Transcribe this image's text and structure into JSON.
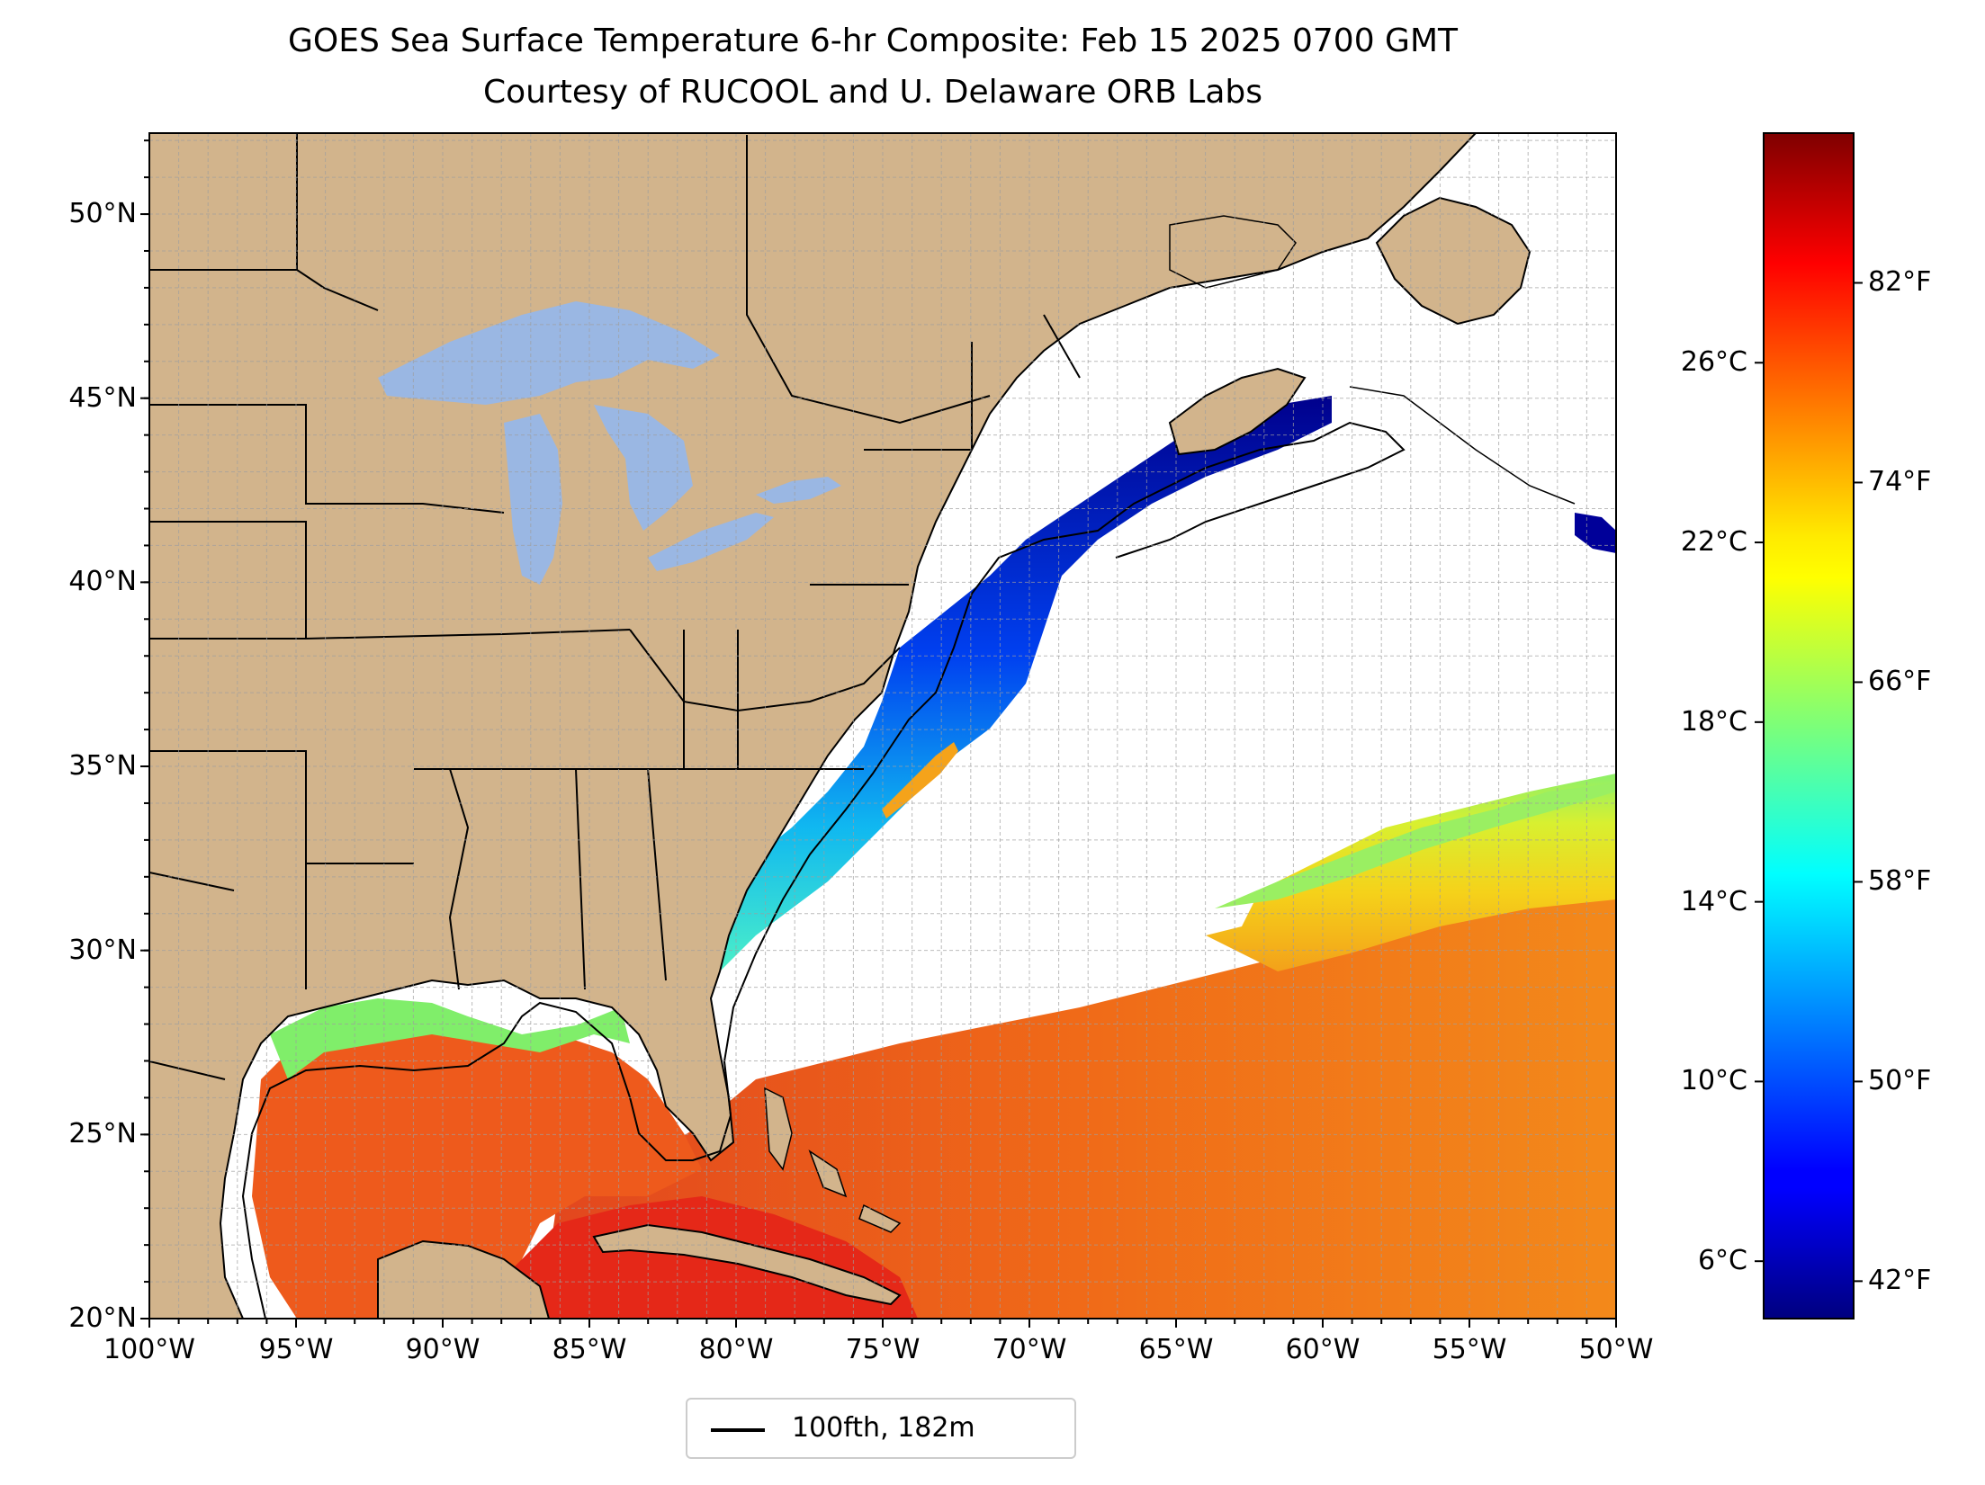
{
  "title": {
    "line1": "GOES Sea Surface Temperature 6-hr Composite: Feb 15 2025 0700 GMT",
    "line2": "Courtesy of RUCOOL and U. Delaware ORB Labs"
  },
  "map": {
    "extent": {
      "lon_min": -100,
      "lon_max": -50,
      "lat_min": 20,
      "lat_max": 52.2
    },
    "lat_ticks": [
      {
        "value": 20,
        "label": "20°N"
      },
      {
        "value": 25,
        "label": "25°N"
      },
      {
        "value": 30,
        "label": "30°N"
      },
      {
        "value": 35,
        "label": "35°N"
      },
      {
        "value": 40,
        "label": "40°N"
      },
      {
        "value": 45,
        "label": "45°N"
      },
      {
        "value": 50,
        "label": "50°N"
      }
    ],
    "lon_ticks": [
      {
        "value": -100,
        "label": "100°W"
      },
      {
        "value": -95,
        "label": "95°W"
      },
      {
        "value": -90,
        "label": "90°W"
      },
      {
        "value": -85,
        "label": "85°W"
      },
      {
        "value": -80,
        "label": "80°W"
      },
      {
        "value": -75,
        "label": "75°W"
      },
      {
        "value": -70,
        "label": "70°W"
      },
      {
        "value": -65,
        "label": "65°W"
      },
      {
        "value": -60,
        "label": "60°W"
      },
      {
        "value": -55,
        "label": "55°W"
      },
      {
        "value": -50,
        "label": "50°W"
      }
    ],
    "grid": true,
    "grid_spacing_deg": 1,
    "colors": {
      "land": "#d2b48c",
      "lakes": "#9ab7e3",
      "ocean_no_data": "#ffffff",
      "borders": "#000000",
      "gridlines": "#9e9e9e"
    },
    "legend": {
      "label": "100fth, 182m",
      "placement": "below-center",
      "line_color": "#000000"
    }
  },
  "colorbar": {
    "colormap": "jet",
    "vmin_f": 40.5,
    "vmax_f": 88,
    "celsius_ticks": [
      {
        "value": 6,
        "label": "6°C"
      },
      {
        "value": 10,
        "label": "10°C"
      },
      {
        "value": 14,
        "label": "14°C"
      },
      {
        "value": 18,
        "label": "18°C"
      },
      {
        "value": 22,
        "label": "22°C"
      },
      {
        "value": 26,
        "label": "26°C"
      }
    ],
    "fahrenheit_ticks": [
      {
        "value": 42,
        "label": "42°F"
      },
      {
        "value": 50,
        "label": "50°F"
      },
      {
        "value": 58,
        "label": "58°F"
      },
      {
        "value": 66,
        "label": "66°F"
      },
      {
        "value": 74,
        "label": "74°F"
      },
      {
        "value": 82,
        "label": "82°F"
      }
    ]
  }
}
